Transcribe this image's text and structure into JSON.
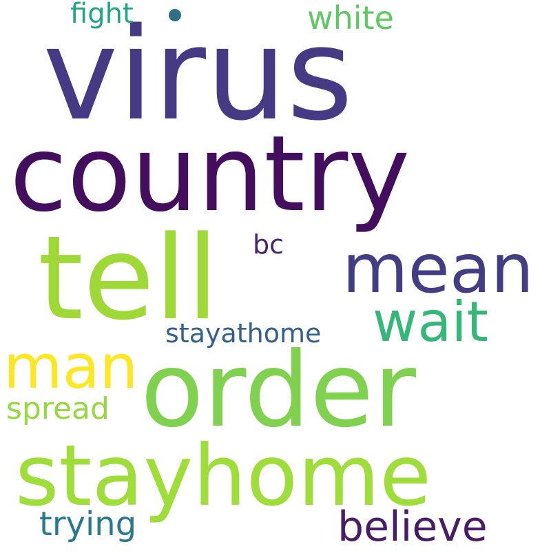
{
  "words": [
    {
      "text": "virus",
      "color": "#463a85"
    },
    {
      "text": "country",
      "color": "#440e5e"
    },
    {
      "text": "tell",
      "color": "#9fd938"
    },
    {
      "text": "order",
      "color": "#7fd14f"
    },
    {
      "text": "stayhome",
      "color": "#9edd3a"
    },
    {
      "text": "mean",
      "color": "#433d84"
    },
    {
      "text": "man",
      "color": "#fde725"
    },
    {
      "text": "wait",
      "color": "#35b779"
    },
    {
      "text": "believe",
      "color": "#471d67"
    },
    {
      "text": "stayathome",
      "color": "#355f8d"
    },
    {
      "text": "spread",
      "color": "#95d840"
    },
    {
      "text": "trying",
      "color": "#2a788e"
    },
    {
      "text": "white",
      "color": "#5ec962"
    },
    {
      "text": "fight",
      "color": "#21a685"
    },
    {
      "text": "bc",
      "color": "#482475"
    }
  ],
  "dot_color": "#2d7088"
}
